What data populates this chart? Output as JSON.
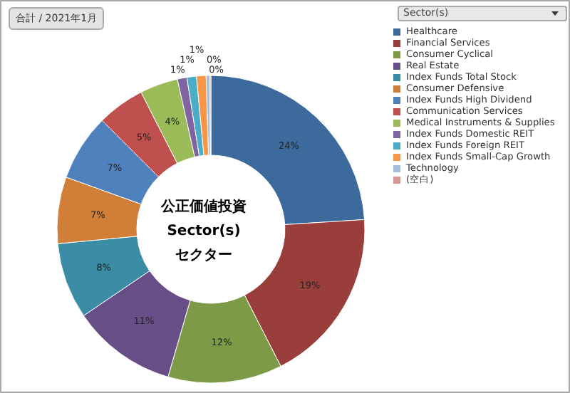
{
  "chart_data": {
    "type": "donut",
    "title": "公正価値投資　Sector(s)\nセクター",
    "legend_title": "Sector(s)",
    "annotations": [
      "合計 / 2021年1月"
    ],
    "categories": [
      "Healthcare",
      "Financial Services",
      "Consumer Cyclical",
      "Real Estate",
      "Index Funds Total Stock",
      "Consumer Defensive",
      "Index Funds High Dividend",
      "Communication Services",
      "Medical Instruments & Supplies",
      "Index Funds Domestic REIT",
      "Index Funds Foreign REIT",
      "Index Funds Small-Cap Growth",
      "Technology",
      "(空白)"
    ],
    "values": [
      24,
      18.5,
      12,
      11,
      8,
      7,
      7,
      5,
      4,
      1,
      1,
      1,
      0.4,
      0.1
    ],
    "value_labels": [
      "24%",
      "19%",
      "12%",
      "11%",
      "8%",
      "7%",
      "7%",
      "5%",
      "4%",
      "1%",
      "1%",
      "1%",
      "0%",
      "0%"
    ],
    "colors": [
      "#3c6a9c",
      "#9a3e3c",
      "#7d9b47",
      "#674e87",
      "#3a8da5",
      "#d17f38",
      "#4f81bd",
      "#c0504d",
      "#9bbb59",
      "#8064a2",
      "#4bacc6",
      "#f79646",
      "#a6bddb",
      "#d99694"
    ],
    "legend": "right"
  }
}
